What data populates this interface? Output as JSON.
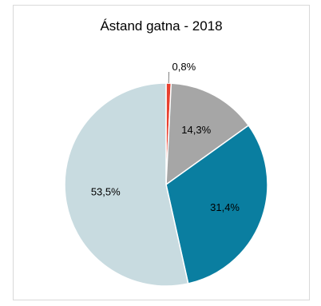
{
  "chart_data": {
    "type": "pie",
    "title": "Ástand gatna - 2018",
    "slices": [
      {
        "label": "0,8%",
        "value": 0.8,
        "color": "#e8402f"
      },
      {
        "label": "14,3%",
        "value": 14.3,
        "color": "#a6a6a6"
      },
      {
        "label": "31,4%",
        "value": 31.4,
        "color": "#0a7ea0"
      },
      {
        "label": "53,5%",
        "value": 53.5,
        "color": "#c8dbe0"
      }
    ],
    "start_angle_deg": 0,
    "direction": "clockwise",
    "legend": "none"
  }
}
